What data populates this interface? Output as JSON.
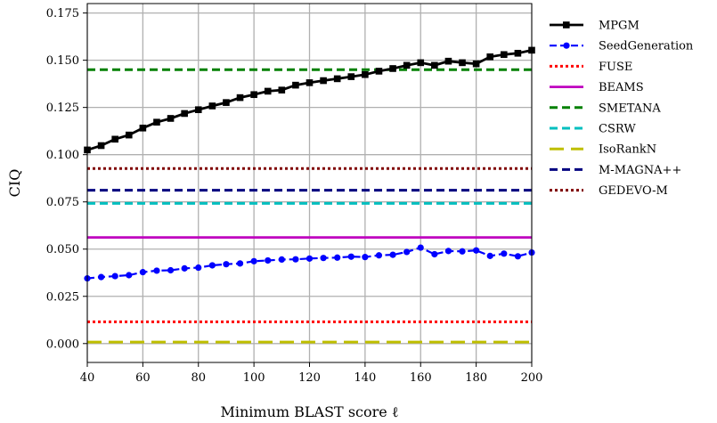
{
  "chart_data": {
    "type": "line",
    "xlabel": "Minimum BLAST score ℓ",
    "ylabel": "CIQ",
    "xlim": [
      40,
      200
    ],
    "ylim": [
      -0.01,
      0.18
    ],
    "x_ticks": [
      40,
      60,
      80,
      100,
      120,
      140,
      160,
      180,
      200
    ],
    "y_ticks": [
      0.0,
      0.025,
      0.05,
      0.075,
      0.1,
      0.125,
      0.15,
      0.175
    ],
    "x_tick_labels": [
      "40",
      "60",
      "80",
      "100",
      "120",
      "140",
      "160",
      "180",
      "200"
    ],
    "y_tick_labels": [
      "0.000",
      "0.025",
      "0.050",
      "0.075",
      "0.100",
      "0.125",
      "0.150",
      "0.175"
    ],
    "grid": true,
    "legend_position": "outside-right",
    "x": [
      40,
      45,
      50,
      55,
      60,
      65,
      70,
      75,
      80,
      85,
      90,
      95,
      100,
      105,
      110,
      115,
      120,
      125,
      130,
      135,
      140,
      145,
      150,
      155,
      160,
      165,
      170,
      175,
      180,
      185,
      190,
      195,
      200
    ],
    "series": [
      {
        "name": "MPGM",
        "color": "#000000",
        "style": "solid-square",
        "values": [
          0.1025,
          0.1048,
          0.1082,
          0.1104,
          0.1141,
          0.1172,
          0.1192,
          0.1218,
          0.1238,
          0.1258,
          0.1276,
          0.1302,
          0.1318,
          0.1336,
          0.1342,
          0.1368,
          0.1381,
          0.1392,
          0.1402,
          0.1413,
          0.1424,
          0.1442,
          0.1456,
          0.1473,
          0.1487,
          0.1473,
          0.1495,
          0.1487,
          0.1481,
          0.1518,
          0.153,
          0.1537,
          0.1553
        ]
      },
      {
        "name": "SeedGeneration",
        "color": "#0000ff",
        "style": "dashed-circle",
        "values": [
          0.0345,
          0.0352,
          0.0357,
          0.0362,
          0.0378,
          0.0386,
          0.0388,
          0.0398,
          0.0402,
          0.0414,
          0.042,
          0.0424,
          0.0436,
          0.044,
          0.0445,
          0.0446,
          0.045,
          0.0453,
          0.0455,
          0.046,
          0.0458,
          0.0467,
          0.047,
          0.0485,
          0.0508,
          0.0473,
          0.049,
          0.0488,
          0.0493,
          0.0464,
          0.0476,
          0.0462,
          0.0482
        ]
      },
      {
        "name": "FUSE",
        "color": "#ff0000",
        "style": "dotted",
        "constant": 0.0115
      },
      {
        "name": "BEAMS",
        "color": "#bf00bf",
        "style": "solid",
        "constant": 0.0562
      },
      {
        "name": "SMETANA",
        "color": "#008000",
        "style": "dashed",
        "constant": 0.145
      },
      {
        "name": "CSRW",
        "color": "#00bfbf",
        "style": "dashed",
        "constant": 0.0742
      },
      {
        "name": "IsoRankN",
        "color": "#bfbf00",
        "style": "long-dashed",
        "constant": 0.0008
      },
      {
        "name": "M-MAGNA++",
        "color": "#000080",
        "style": "dashed",
        "constant": 0.0812
      },
      {
        "name": "GEDEVO-M",
        "color": "#800000",
        "style": "dotted",
        "constant": 0.0927
      }
    ]
  }
}
